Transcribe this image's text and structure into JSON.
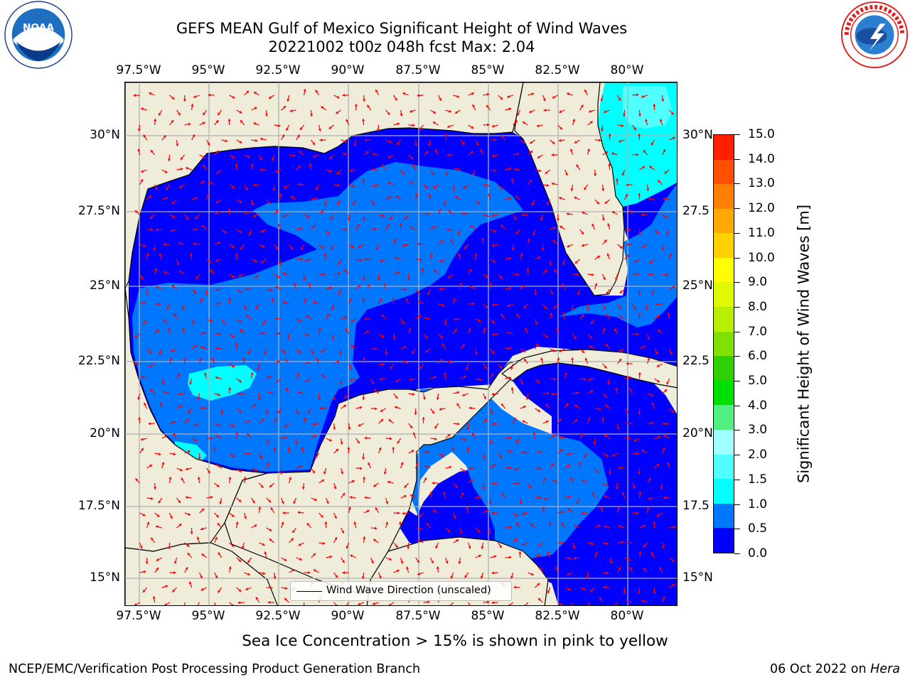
{
  "header": {
    "title_line1": "GEFS MEAN Gulf of Mexico Significant Height of Wind Waves",
    "title_line2": "20221002 t00z 048h fcst   Max: 2.04"
  },
  "logos": {
    "left": {
      "icon": "noaa-logo",
      "text": "NOAA"
    },
    "right": {
      "icon": "national-weather-service-logo"
    }
  },
  "map": {
    "lon_ticks": [
      "97.5°W",
      "95°W",
      "92.5°W",
      "90°W",
      "87.5°W",
      "85°W",
      "82.5°W",
      "80°W"
    ],
    "lat_ticks": [
      "30°N",
      "27.5°N",
      "25°N",
      "22.5°N",
      "20°N",
      "17.5°N",
      "15°N"
    ],
    "lat_ticks_right": [
      "30°N",
      "27.5",
      "25°N",
      "22.5",
      "20°N",
      "17.5",
      "15°N"
    ],
    "colors": {
      "land": "#efedda",
      "coast": "#000000",
      "grid": "#b0b0b0",
      "arrow": "#ff0000"
    },
    "legend_label": "Wind Wave Direction (unscaled)"
  },
  "colorbar": {
    "title": "Significant Height of Wind Waves [m]",
    "labels": [
      "0.0",
      "0.5",
      "1.0",
      "1.5",
      "2.0",
      "3.0",
      "4.0",
      "5.0",
      "6.0",
      "7.0",
      "8.0",
      "9.0",
      "10.0",
      "11.0",
      "12.0",
      "13.0",
      "14.0",
      "15.0"
    ],
    "colors": [
      "#0000ff",
      "#0077ff",
      "#00ffff",
      "#50ffff",
      "#a0ffff",
      "#50f080",
      "#00e000",
      "#30d000",
      "#80e000",
      "#b8ee00",
      "#e0f800",
      "#ffff00",
      "#ffd000",
      "#ffa800",
      "#ff8000",
      "#ff5000",
      "#ff2000"
    ]
  },
  "chart_data": {
    "type": "heatmap",
    "title": "GEFS MEAN Gulf of Mexico Significant Height of Wind Waves",
    "subtitle": "20221002 t00z 048h fcst   Max: 2.04",
    "variable": "Significant Height of Wind Waves [m]",
    "lon_range": [
      -98,
      -78
    ],
    "lat_range": [
      14,
      32
    ],
    "max_value": 2.04,
    "color_scale_bounds": [
      0.0,
      0.5,
      1.0,
      1.5,
      2.0,
      3.0,
      4.0,
      5.0,
      6.0,
      7.0,
      8.0,
      9.0,
      10.0,
      11.0,
      12.0,
      13.0,
      14.0,
      15.0
    ],
    "grid": "on"
  },
  "footer": {
    "note": "Sea Ice Concentration > 15% is shown in pink to yellow",
    "credit": "NCEP/EMC/Verification Post Processing Product Generation Branch",
    "date": "06 Oct 2022 on ",
    "host": "Hera"
  }
}
